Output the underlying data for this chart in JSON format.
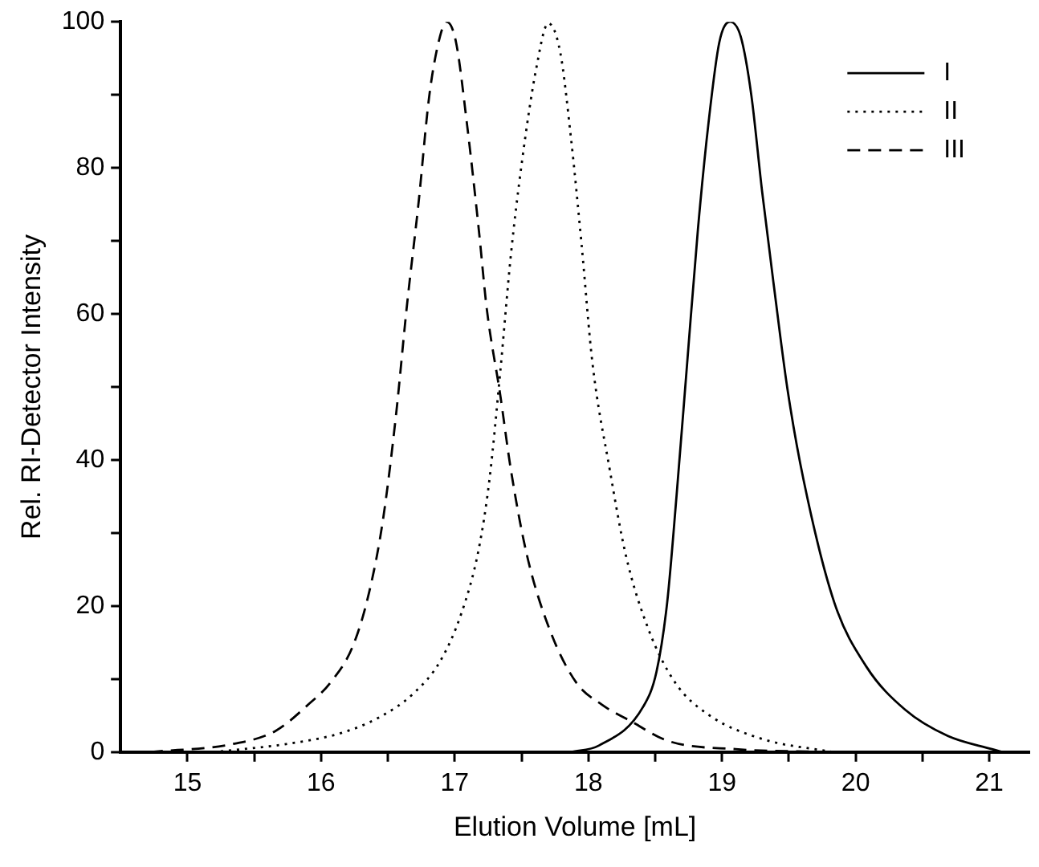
{
  "chart_data": {
    "type": "line",
    "xlabel": "Elution Volume [mL]",
    "ylabel": "Rel. RI-Detector Intensity",
    "xlim": [
      14.5,
      21.3
    ],
    "ylim": [
      0,
      100
    ],
    "xticks": [
      15,
      {
        "value": 15.5,
        "label": null
      },
      16,
      {
        "value": 16.5,
        "label": null
      },
      17,
      {
        "value": 17.5,
        "label": null
      },
      18,
      {
        "value": 18.5,
        "label": null
      },
      19,
      {
        "value": 19.5,
        "label": null
      },
      20,
      {
        "value": 20.5,
        "label": null
      },
      21
    ],
    "yticks": [
      0,
      {
        "value": 10,
        "label": null
      },
      20,
      {
        "value": 30,
        "label": null
      },
      40,
      {
        "value": 50,
        "label": null
      },
      60,
      {
        "value": 70,
        "label": null
      },
      80,
      {
        "value": 90,
        "label": null
      },
      100
    ],
    "grid": false,
    "legend": "top right",
    "marker": "none",
    "series": [
      {
        "name": "I",
        "color": "#000000",
        "line_style": "solid",
        "x": [
          17.87,
          18.08,
          18.41,
          18.51,
          18.59,
          18.66,
          18.74,
          18.82,
          18.9,
          18.98,
          19.06,
          19.14,
          19.22,
          19.3,
          19.39,
          19.49,
          19.61,
          19.84,
          20.08,
          20.37,
          20.69,
          21.02,
          21.1
        ],
        "values": [
          0,
          0.9,
          6.2,
          11,
          20.5,
          35.1,
          53.4,
          71.6,
          86.3,
          97.2,
          100,
          98,
          89.9,
          76.8,
          63.6,
          49.7,
          37.3,
          20.5,
          11.7,
          5.8,
          2.2,
          0.4,
          0
        ]
      },
      {
        "name": "II",
        "color": "#000000",
        "line_style": "dotted",
        "x": [
          15.25,
          15.74,
          16.15,
          16.44,
          16.69,
          16.89,
          17.05,
          17.18,
          17.26,
          17.34,
          17.42,
          17.5,
          17.61,
          17.7,
          17.79,
          17.87,
          17.95,
          18.03,
          18.16,
          18.28,
          18.45,
          18.65,
          18.9,
          19.3,
          19.83
        ],
        "values": [
          0.1,
          1.1,
          2.6,
          4.8,
          8,
          12.4,
          19,
          27.8,
          37.3,
          51.9,
          68,
          80.4,
          93.6,
          99.8,
          95.8,
          84.1,
          69.4,
          53.4,
          38.7,
          27,
          16.8,
          9.5,
          5.1,
          1.8,
          0
        ]
      },
      {
        "name": "III",
        "color": "#000000",
        "line_style": "dashed",
        "x": [
          14.72,
          15.34,
          15.66,
          15.91,
          16.07,
          16.24,
          16.36,
          16.46,
          16.56,
          16.64,
          16.73,
          16.81,
          16.89,
          16.94,
          17.01,
          17.09,
          17.18,
          17.24,
          17.34,
          17.42,
          17.54,
          17.71,
          17.91,
          18.1,
          18.32,
          18.6,
          19.1,
          19.8
        ],
        "values": [
          0,
          1.1,
          2.9,
          6.6,
          9.5,
          14.6,
          21.9,
          31.4,
          46,
          60.7,
          75.3,
          89.9,
          98,
          100,
          97.2,
          86.3,
          71.6,
          60.7,
          49,
          38.7,
          27,
          16.8,
          9.5,
          6.5,
          4.2,
          1.5,
          0.4,
          0
        ]
      }
    ]
  }
}
